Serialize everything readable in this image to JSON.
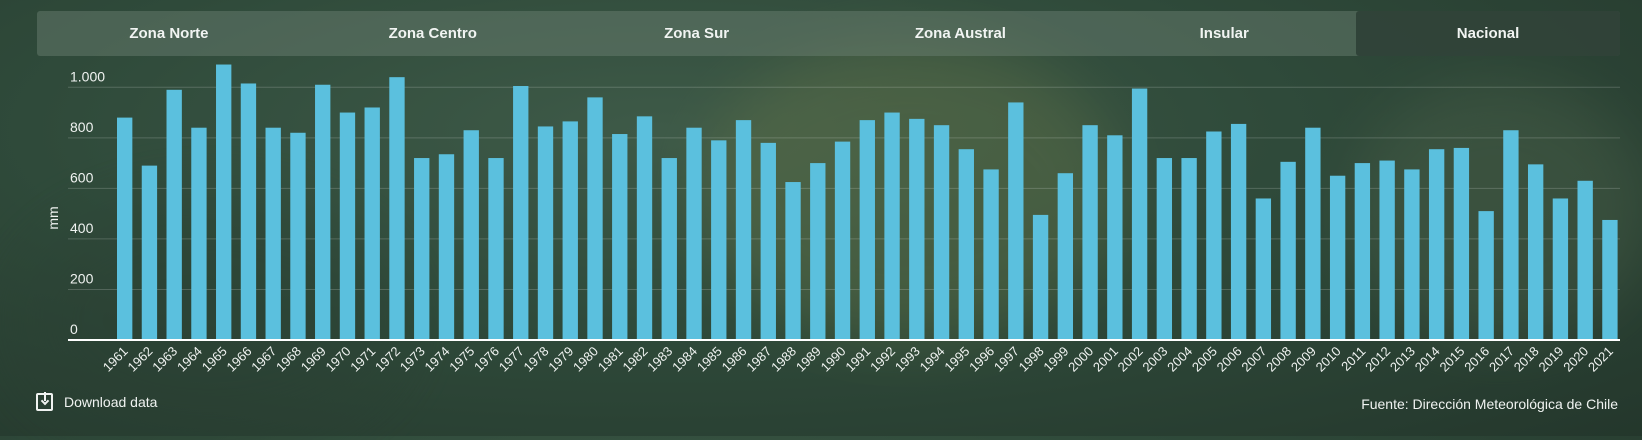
{
  "tabs": [
    {
      "label": "Zona Norte",
      "active": false
    },
    {
      "label": "Zona Centro",
      "active": false
    },
    {
      "label": "Zona Sur",
      "active": false
    },
    {
      "label": "Zona Austral",
      "active": false
    },
    {
      "label": "Insular",
      "active": false
    },
    {
      "label": "Nacional",
      "active": true
    }
  ],
  "footer": {
    "download_label": "Download data",
    "source": "Fuente: Dirección Meteorológica de Chile"
  },
  "colors": {
    "bar": "#5bc0de",
    "grid": "rgba(255,255,255,0.18)",
    "axis": "#ffffff"
  },
  "chart_data": {
    "type": "bar",
    "ylabel": "mm",
    "ylim": [
      0,
      1100
    ],
    "yticks": [
      0,
      200,
      400,
      600,
      800,
      1000
    ],
    "ytick_labels": [
      "0",
      "200",
      "400",
      "600",
      "800",
      "1.000"
    ],
    "grid": true,
    "categories": [
      "1961",
      "1962",
      "1963",
      "1964",
      "1965",
      "1966",
      "1967",
      "1968",
      "1969",
      "1970",
      "1971",
      "1972",
      "1973",
      "1974",
      "1975",
      "1976",
      "1977",
      "1978",
      "1979",
      "1980",
      "1981",
      "1982",
      "1983",
      "1984",
      "1985",
      "1986",
      "1987",
      "1988",
      "1989",
      "1990",
      "1991",
      "1992",
      "1993",
      "1994",
      "1995",
      "1996",
      "1997",
      "1998",
      "1999",
      "2000",
      "2001",
      "2002",
      "2003",
      "2004",
      "2005",
      "2006",
      "2007",
      "2008",
      "2009",
      "2010",
      "2011",
      "2012",
      "2013",
      "2014",
      "2015",
      "2016",
      "2017",
      "2018",
      "2019",
      "2020",
      "2021"
    ],
    "values": [
      880,
      690,
      990,
      840,
      1090,
      1015,
      840,
      820,
      1010,
      900,
      920,
      1040,
      720,
      735,
      830,
      720,
      1005,
      845,
      865,
      960,
      815,
      885,
      720,
      840,
      790,
      870,
      780,
      625,
      700,
      785,
      870,
      900,
      875,
      850,
      755,
      675,
      940,
      495,
      660,
      850,
      810,
      995,
      720,
      720,
      825,
      855,
      560,
      705,
      840,
      650,
      700,
      710,
      675,
      755,
      760,
      510,
      830,
      695,
      560,
      630,
      475
    ]
  }
}
